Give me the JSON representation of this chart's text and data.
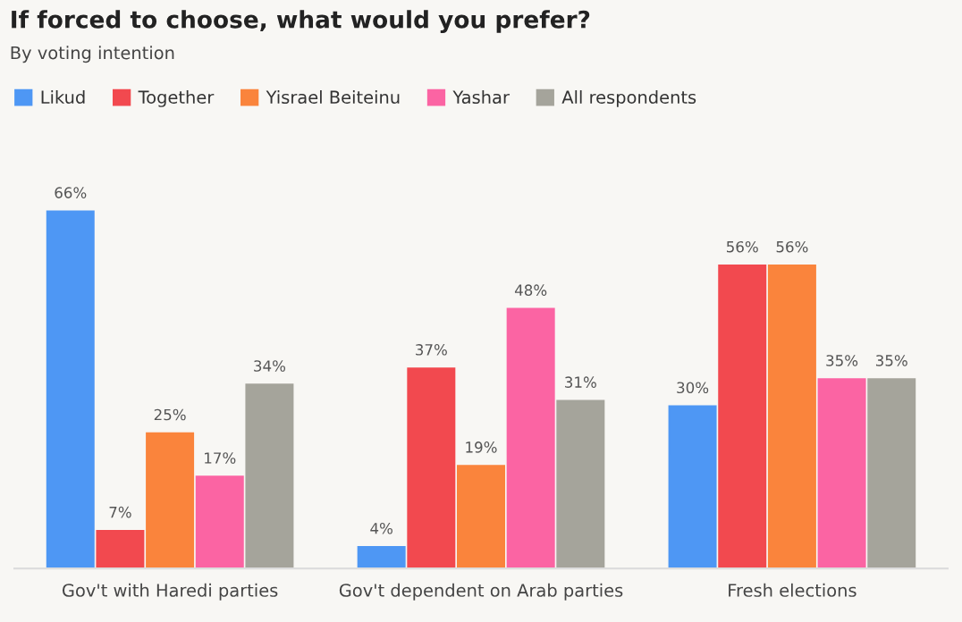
{
  "chart_data": {
    "type": "bar",
    "title": "If forced to choose, what would you prefer?",
    "subtitle": "By voting intention",
    "categories": [
      "Gov't with Haredi parties",
      "Gov't dependent on Arab parties",
      "Fresh elections"
    ],
    "series": [
      {
        "name": "Likud",
        "color": "#4e97f4",
        "values": [
          66,
          4,
          30
        ],
        "value_labels": [
          "66%",
          "4%",
          "30%"
        ]
      },
      {
        "name": "Together",
        "color": "#f2494f",
        "values": [
          7,
          37,
          56
        ],
        "value_labels": [
          "7%",
          "37%",
          "56%"
        ]
      },
      {
        "name": "Yisrael Beiteinu",
        "color": "#fa843c",
        "values": [
          25,
          19,
          56
        ],
        "value_labels": [
          "25%",
          "19%",
          "56%"
        ]
      },
      {
        "name": "Yashar",
        "color": "#fb64a3",
        "values": [
          17,
          48,
          35
        ],
        "value_labels": [
          "17%",
          "48%",
          "35%"
        ]
      },
      {
        "name": "All respondents",
        "color": "#a5a49b",
        "values": [
          34,
          31,
          35
        ],
        "value_labels": [
          "34%",
          "31%",
          "35%"
        ]
      }
    ],
    "legend": "top left",
    "grid": false
  }
}
